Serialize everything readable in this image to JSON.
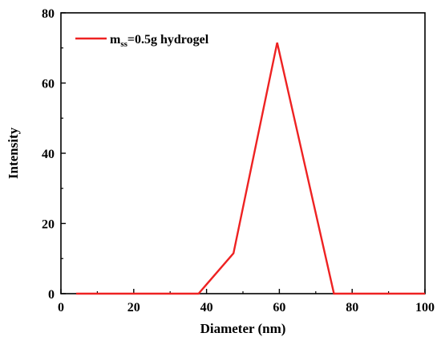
{
  "chart_data": {
    "type": "line",
    "xlabel": "Diameter (nm)",
    "ylabel": "Intensity",
    "xlim": [
      0,
      100
    ],
    "ylim": [
      0,
      80
    ],
    "xticks": [
      0,
      20,
      40,
      60,
      80,
      100
    ],
    "yticks": [
      0,
      20,
      40,
      60,
      80
    ],
    "grid": false,
    "legend_position": "top-left",
    "series": [
      {
        "name_main": "m",
        "name_sub": "ss",
        "name_rest": "=0.5g hydrogel",
        "color": "#ee2222",
        "x": [
          4.2,
          37.8,
          47.4,
          59.4,
          75.0,
          100
        ],
        "y": [
          0,
          0,
          11.5,
          71.5,
          0,
          0
        ]
      }
    ]
  }
}
